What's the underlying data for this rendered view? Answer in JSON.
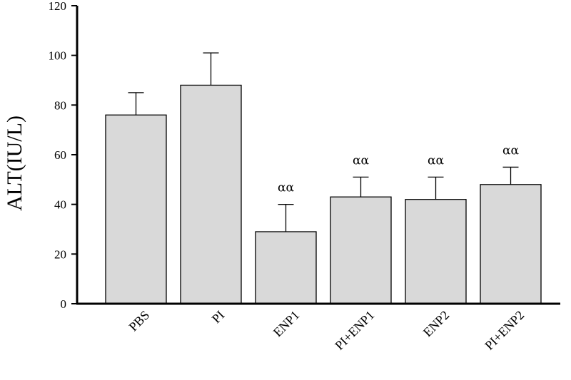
{
  "chart_data": {
    "type": "bar",
    "title": "",
    "xlabel": "",
    "ylabel": "ALT(IU/L)",
    "ylim": [
      0,
      120
    ],
    "yticks": [
      0,
      20,
      40,
      60,
      80,
      100,
      120
    ],
    "categories": [
      "PBS",
      "PI",
      "ENP1",
      "PI+ENP1",
      "ENP2",
      "PI+ENP2"
    ],
    "values": [
      76,
      88,
      29,
      43,
      42,
      48
    ],
    "errors": [
      9,
      13,
      11,
      8,
      9,
      7
    ],
    "annotations": [
      "",
      "",
      "αα",
      "αα",
      "αα",
      "αα"
    ],
    "bar_color": "#d9d9d9",
    "grid": false
  }
}
